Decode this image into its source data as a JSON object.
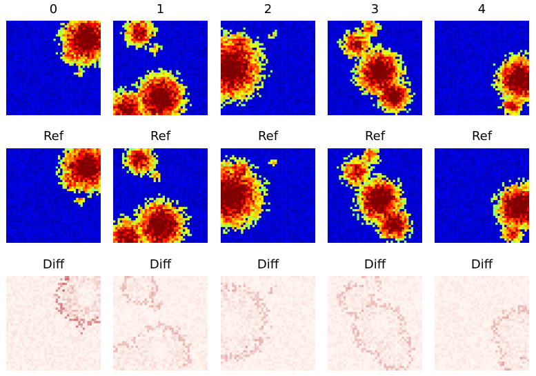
{
  "chart_data": {
    "type": "heatmap",
    "layout": "3 rows x 5 columns of image panels",
    "columns": [
      "0",
      "1",
      "2",
      "3",
      "4"
    ],
    "rows": [
      {
        "label_source": "column index",
        "colormap": "jet",
        "content": "predicted field"
      },
      {
        "label": "Ref",
        "colormap": "jet",
        "content": "reference field"
      },
      {
        "label": "Diff",
        "colormap": "Reds",
        "content": "absolute difference"
      }
    ],
    "titles": [
      [
        "0",
        "1",
        "2",
        "3",
        "4"
      ],
      [
        "Ref",
        "Ref",
        "Ref",
        "Ref",
        "Ref"
      ],
      [
        "Diff",
        "Diff",
        "Diff",
        "Diff",
        "Diff"
      ]
    ],
    "axes_visible": false,
    "colors": {
      "jet_low": "#0a14c8",
      "jet_high": "#c81e00",
      "diff_low": "#fff5f0",
      "diff_high": "#b40f14"
    }
  }
}
